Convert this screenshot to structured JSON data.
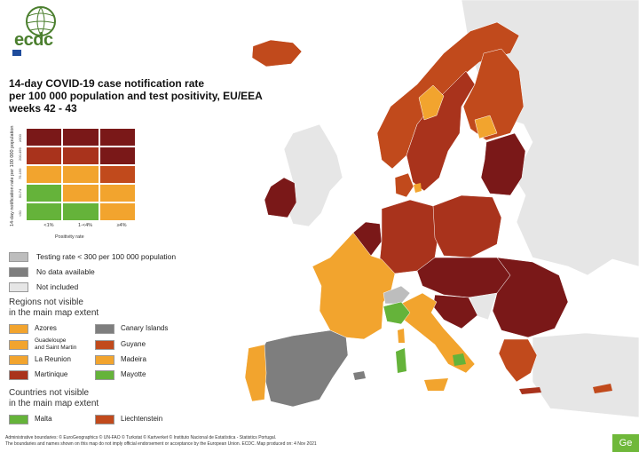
{
  "logo": {
    "name": "ecdc",
    "subtitle": "EUROPEAN CENTRE FOR DISEASE PREVENTION AND CONTROL"
  },
  "title_lines": [
    "14-day COVID-19 case notification rate",
    "per 100 000 population and test positivity, EU/EEA",
    "weeks 42 - 43"
  ],
  "matrix": {
    "y_axis_label": "14-day notification rate per 100 000 population",
    "y_ticks": [
      "≥500",
      "200-499",
      "75-199",
      "50-74",
      "<50"
    ],
    "x_axis_label": "Positivity rate",
    "x_ticks": [
      "<1%",
      "1-<4%",
      "≥4%"
    ],
    "cells": [
      [
        "#7a1818",
        "#7a1818",
        "#7a1818"
      ],
      [
        "#a9331c",
        "#a9331c",
        "#7a1818"
      ],
      [
        "#f2a42e",
        "#f2a42e",
        "#c14a1c"
      ],
      [
        "#65b33a",
        "#f2a42e",
        "#f2a42e"
      ],
      [
        "#65b33a",
        "#65b33a",
        "#f2a42e"
      ]
    ]
  },
  "legend": [
    {
      "label": "Testing rate < 300 per 100 000 population",
      "color": "#bdbdbd"
    },
    {
      "label": "No data available",
      "color": "#7e7e7e"
    },
    {
      "label": "Not included",
      "color": "#e6e6e6"
    }
  ],
  "regions_title_lines": [
    "Regions not visible",
    "in the main map extent"
  ],
  "regions": [
    {
      "label": "Azores",
      "color": "#f2a42e",
      "col": 0
    },
    {
      "label": "Canary Islands",
      "color": "#7e7e7e",
      "col": 1
    },
    {
      "label": "Guadeloupe and Saint Martin",
      "label_lines": [
        "Guadeloupe",
        "and Saint Martin"
      ],
      "color": "#f2a42e",
      "col": 0
    },
    {
      "label": "Guyane",
      "color": "#c14a1c",
      "col": 1
    },
    {
      "label": "La Reunion",
      "color": "#f2a42e",
      "col": 0
    },
    {
      "label": "Madeira",
      "color": "#f2a42e",
      "col": 1
    },
    {
      "label": "Martinique",
      "color": "#a9331c",
      "col": 0
    },
    {
      "label": "Mayotte",
      "color": "#65b33a",
      "col": 1
    }
  ],
  "countries_title_lines": [
    "Countries not visible",
    "in the main map extent"
  ],
  "countries": [
    {
      "label": "Malta",
      "color": "#65b33a"
    },
    {
      "label": "Liechtenstein",
      "color": "#c14a1c"
    }
  ],
  "footer_lines": [
    "Administrative boundaries: © EuroGeographics © UN-FAO © Turkstat © Kartverket © Instituto Nacional de Estatística - Statistics Portugal.",
    "The boundaries and names shown on this map do not imply official endorsement or acceptance by the European Union. ECDC. Map produced on: 4 Nov 2021"
  ],
  "go_button": "Ge",
  "colors": {
    "dark_red": "#7a1818",
    "red": "#a9331c",
    "orange_red": "#c14a1c",
    "orange": "#f2a42e",
    "green": "#65b33a",
    "dark_grey": "#7e7e7e",
    "light_grey": "#bdbdbd",
    "not_included": "#e6e6e6"
  }
}
